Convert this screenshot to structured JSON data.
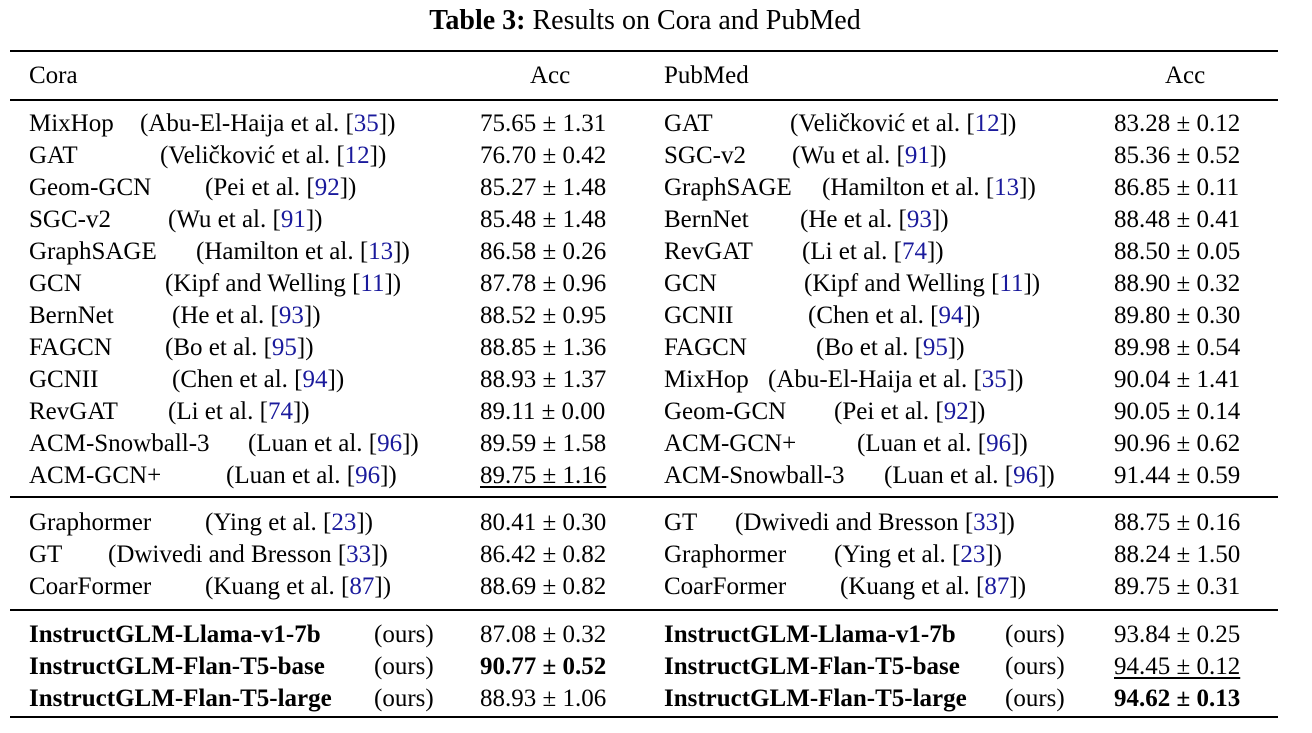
{
  "caption": {
    "label": "Table 3:",
    "text": "Results on Cora and PubMed"
  },
  "header": {
    "left_dataset": "Cora",
    "left_metric": "Acc",
    "right_dataset": "PubMed",
    "right_metric": "Acc"
  },
  "rows": [
    {
      "l_name": "MixHop",
      "l_pre": "(Abu-El-Haija et al. [",
      "l_ref": "35",
      "l_acc": "75.65 ± 1.31",
      "r_name": "GAT",
      "r_pre": "(Veličković et al. [",
      "r_ref": "12",
      "r_acc": "83.28 ± 0.12"
    },
    {
      "l_name": "GAT",
      "l_pre": "(Veličković et al. [",
      "l_ref": "12",
      "l_acc": "76.70 ± 0.42",
      "r_name": "SGC-v2",
      "r_pre": "(Wu et al. [",
      "r_ref": "91",
      "r_acc": "85.36 ± 0.52"
    },
    {
      "l_name": "Geom-GCN",
      "l_pre": "(Pei et al. [",
      "l_ref": "92",
      "l_acc": "85.27 ± 1.48",
      "r_name": "GraphSAGE",
      "r_pre": "(Hamilton et al. [",
      "r_ref": "13",
      "r_acc": "86.85 ± 0.11"
    },
    {
      "l_name": "SGC-v2",
      "l_pre": "(Wu et al. [",
      "l_ref": "91",
      "l_acc": "85.48 ± 1.48",
      "r_name": "BernNet",
      "r_pre": "(He et al. [",
      "r_ref": "93",
      "r_acc": "88.48 ± 0.41"
    },
    {
      "l_name": "GraphSAGE",
      "l_pre": "(Hamilton et al. [",
      "l_ref": "13",
      "l_acc": "86.58 ± 0.26",
      "r_name": "RevGAT",
      "r_pre": "(Li et al. [",
      "r_ref": "74",
      "r_acc": "88.50 ± 0.05"
    },
    {
      "l_name": "GCN",
      "l_pre": "(Kipf and Welling [",
      "l_ref": "11",
      "l_acc": "87.78 ± 0.96",
      "r_name": "GCN",
      "r_pre": "(Kipf and Welling [",
      "r_ref": "11",
      "r_acc": "88.90 ± 0.32"
    },
    {
      "l_name": "BernNet",
      "l_pre": "(He et al. [",
      "l_ref": "93",
      "l_acc": "88.52 ± 0.95",
      "r_name": "GCNII",
      "r_pre": "(Chen et al. [",
      "r_ref": "94",
      "r_acc": "89.80 ± 0.30"
    },
    {
      "l_name": "FAGCN",
      "l_pre": "(Bo et al. [",
      "l_ref": "95",
      "l_acc": "88.85 ± 1.36",
      "r_name": "FAGCN",
      "r_pre": "(Bo et al. [",
      "r_ref": "95",
      "r_acc": "89.98 ± 0.54"
    },
    {
      "l_name": "GCNII",
      "l_pre": "(Chen et al. [",
      "l_ref": "94",
      "l_acc": "88.93 ± 1.37",
      "r_name": "MixHop",
      "r_pre": "(Abu-El-Haija et al. [",
      "r_ref": "35",
      "r_acc": "90.04 ± 1.41"
    },
    {
      "l_name": "RevGAT",
      "l_pre": "(Li et al. [",
      "l_ref": "74",
      "l_acc": "89.11 ± 0.00",
      "r_name": "Geom-GCN",
      "r_pre": "(Pei et al. [",
      "r_ref": "92",
      "r_acc": "90.05 ± 0.14"
    },
    {
      "l_name": "ACM-Snowball-3",
      "l_pre": "(Luan et al. [",
      "l_ref": "96",
      "l_acc": "89.59 ± 1.58",
      "r_name": "ACM-GCN+",
      "r_pre": "(Luan et al. [",
      "r_ref": "96",
      "r_acc": "90.96 ± 0.62"
    },
    {
      "l_name": "ACM-GCN+",
      "l_pre": "(Luan et al. [",
      "l_ref": "96",
      "l_acc": "89.75 ± 1.16",
      "r_name": "ACM-Snowball-3",
      "r_pre": "(Luan et al. [",
      "r_ref": "96",
      "r_acc": "91.44 ± 0.59"
    },
    {
      "l_name": "Graphormer",
      "l_pre": "(Ying et al. [",
      "l_ref": "23",
      "l_acc": "80.41 ± 0.30",
      "r_name": "GT",
      "r_pre": "(Dwivedi and Bresson [",
      "r_ref": "33",
      "r_acc": "88.75 ± 0.16"
    },
    {
      "l_name": "GT",
      "l_pre": "(Dwivedi and Bresson [",
      "l_ref": "33",
      "l_acc": "86.42 ± 0.82",
      "r_name": "Graphormer",
      "r_pre": "(Ying et al. [",
      "r_ref": "23",
      "r_acc": "88.24 ± 1.50"
    },
    {
      "l_name": "CoarFormer",
      "l_pre": "(Kuang et al. [",
      "l_ref": "87",
      "l_acc": "88.69 ± 0.82",
      "r_name": "CoarFormer",
      "r_pre": "(Kuang et al. [",
      "r_ref": "87",
      "r_acc": "89.75 ± 0.31"
    },
    {
      "l_name": "InstructGLM-Llama-v1-7b",
      "l_pre": "(ours)",
      "l_ref": "",
      "l_acc": "87.08 ± 0.32",
      "r_name": "InstructGLM-Llama-v1-7b",
      "r_pre": "(ours)",
      "r_ref": "",
      "r_acc": "93.84 ± 0.25"
    },
    {
      "l_name": "InstructGLM-Flan-T5-base",
      "l_pre": "(ours)",
      "l_ref": "",
      "l_acc": "90.77 ± 0.52",
      "r_name": "InstructGLM-Flan-T5-base",
      "r_pre": "(ours)",
      "r_ref": "",
      "r_acc": "94.45 ± 0.12"
    },
    {
      "l_name": "InstructGLM-Flan-T5-large",
      "l_pre": "(ours)",
      "l_ref": "",
      "l_acc": "88.93 ± 1.06",
      "r_name": "InstructGLM-Flan-T5-large",
      "r_pre": "(ours)",
      "r_ref": "",
      "r_acc": "94.62 ± 0.13"
    }
  ]
}
